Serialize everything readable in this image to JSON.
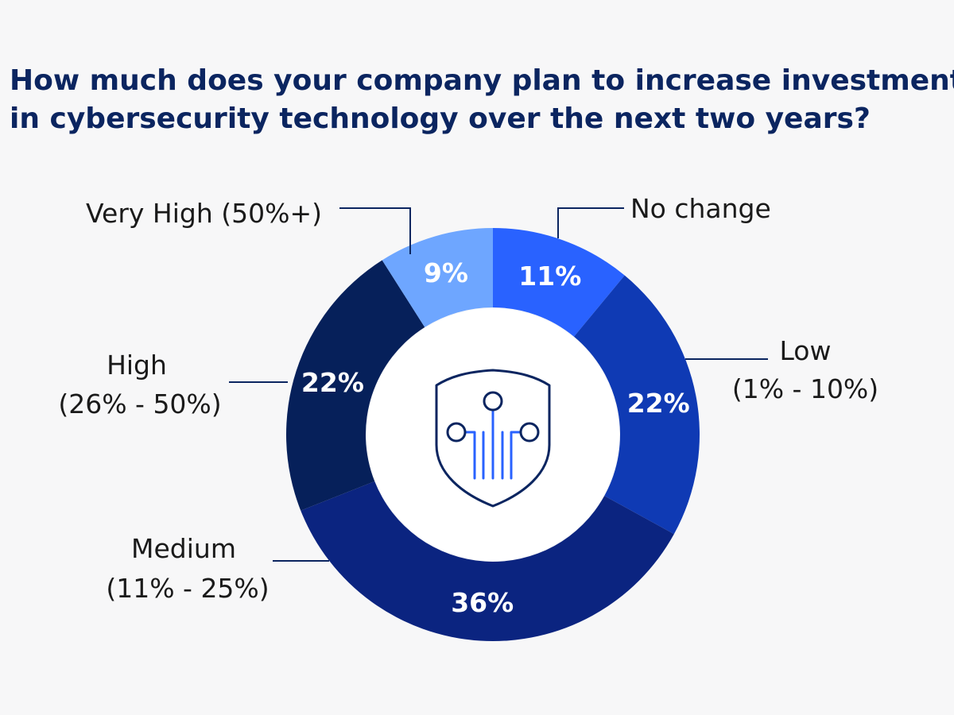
{
  "title_lines": [
    "How much does your company plan to increase investment",
    "in cybersecurity technology over the next two years?"
  ],
  "chart_data": {
    "type": "pie",
    "title": "How much does your company plan to increase investment in cybersecurity technology over the next two years?",
    "slices": [
      {
        "category": "No change",
        "value": 11,
        "value_label": "11%",
        "label_lines": [
          "No change"
        ],
        "color": "#2962ff"
      },
      {
        "category": "Low (1% - 10%)",
        "value": 22,
        "value_label": "22%",
        "label_lines": [
          "Low",
          "(1% - 10%)"
        ],
        "color": "#0f3ab4"
      },
      {
        "category": "Medium (11% - 25%)",
        "value": 36,
        "value_label": "36%",
        "label_lines": [
          "Medium",
          "(11% - 25%)"
        ],
        "color": "#0b2480"
      },
      {
        "category": "High (26% - 50%)",
        "value": 22,
        "value_label": "22%",
        "label_lines": [
          "High",
          "(26% - 50%)"
        ],
        "color": "#06205a"
      },
      {
        "category": "Very High (50%+)",
        "value": 9,
        "value_label": "9%",
        "label_lines": [
          "Very High  (50%+)"
        ],
        "color": "#6ea6ff"
      }
    ],
    "donut": true,
    "center_icon": "shield-circuit-icon",
    "legend": "none"
  }
}
